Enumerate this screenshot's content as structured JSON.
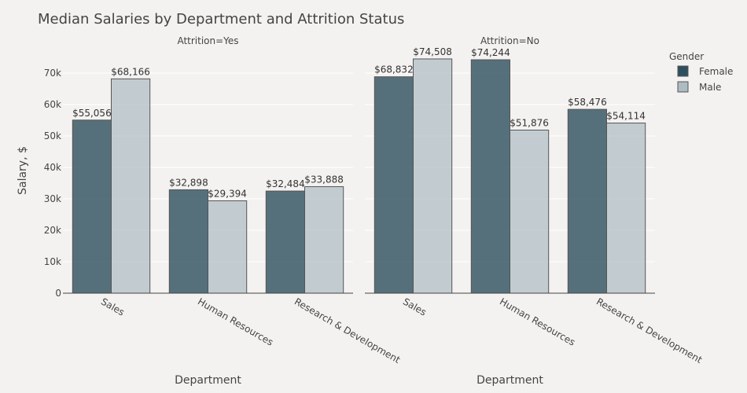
{
  "chart_data": {
    "type": "bar",
    "title": "Median Salaries by Department and Attrition Status",
    "ylabel": "Salary, $",
    "xlabel": "Department",
    "ylim": [
      0,
      80000
    ],
    "yticks": [
      0,
      10000,
      20000,
      30000,
      40000,
      50000,
      60000,
      70000
    ],
    "ytick_labels": [
      "0",
      "10k",
      "20k",
      "30k",
      "40k",
      "50k",
      "60k",
      "70k"
    ],
    "categories": [
      "Sales",
      "Human Resources",
      "Research & Development"
    ],
    "legend": {
      "title": "Gender",
      "position": "top-right"
    },
    "colors": {
      "Female": "#2e4f5e",
      "Male": "#acbcc2",
      "bar_edge": "#555555"
    },
    "facets": [
      {
        "label": "Attrition=Yes",
        "series": [
          {
            "name": "Female",
            "values": [
              55056,
              32898,
              32484
            ],
            "labels": [
              "$55,056",
              "$32,898",
              "$32,484"
            ]
          },
          {
            "name": "Male",
            "values": [
              68166,
              29394,
              33888
            ],
            "labels": [
              "$68,166",
              "$29,394",
              "$33,888"
            ]
          }
        ]
      },
      {
        "label": "Attrition=No",
        "series": [
          {
            "name": "Female",
            "values": [
              68832,
              74244,
              58476
            ],
            "labels": [
              "$68,832",
              "$74,244",
              "$58,476"
            ]
          },
          {
            "name": "Male",
            "values": [
              74508,
              51876,
              54114
            ],
            "labels": [
              "$74,508",
              "$51,876",
              "$54,114"
            ]
          }
        ]
      }
    ]
  }
}
